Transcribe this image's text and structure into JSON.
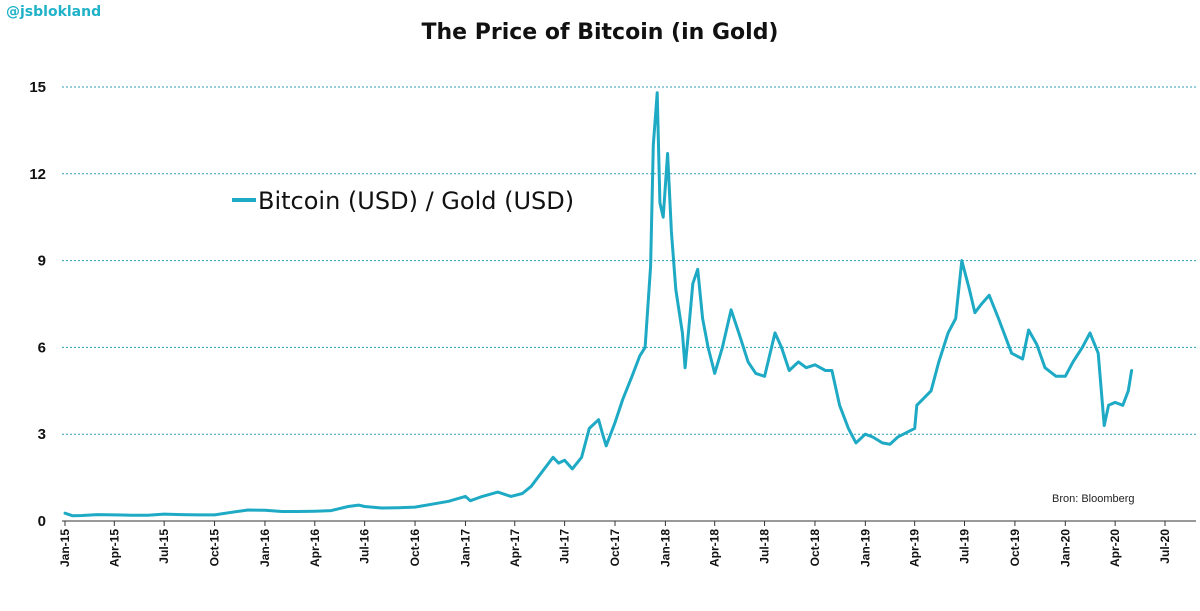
{
  "handle": "@jsblokland",
  "chart_data": {
    "type": "line",
    "title": "The Price of Bitcoin (in Gold)",
    "xlabel": "",
    "ylabel": "",
    "ylim": [
      0,
      15
    ],
    "yticks": [
      0,
      3,
      6,
      9,
      12,
      15
    ],
    "x_tick_labels": [
      "Jan-15",
      "Apr-15",
      "Jul-15",
      "Oct-15",
      "Jan-16",
      "Apr-16",
      "Jul-16",
      "Oct-16",
      "Jan-17",
      "Apr-17",
      "Jul-17",
      "Oct-17",
      "Jan-18",
      "Apr-18",
      "Jul-18",
      "Oct-18",
      "Jan-19",
      "Apr-19",
      "Jul-19",
      "Oct-19",
      "Jan-20",
      "Apr-20",
      "Jul-20"
    ],
    "x_tick_dates": [
      "2015-01",
      "2015-04",
      "2015-07",
      "2015-10",
      "2016-01",
      "2016-04",
      "2016-07",
      "2016-10",
      "2017-01",
      "2017-04",
      "2017-07",
      "2017-10",
      "2018-01",
      "2018-04",
      "2018-07",
      "2018-10",
      "2019-01",
      "2019-04",
      "2019-07",
      "2019-10",
      "2020-01",
      "2020-04",
      "2020-07"
    ],
    "grid": "horizontal dotted",
    "legend_position": "upper-left",
    "source": "Bron: Bloomberg",
    "series": [
      {
        "name": "Bitcoin (USD) / Gold (USD)",
        "color": "#1eaac4",
        "points": [
          [
            "2015-01-01",
            0.27
          ],
          [
            "2015-01-15",
            0.18
          ],
          [
            "2015-02-01",
            0.19
          ],
          [
            "2015-03-01",
            0.22
          ],
          [
            "2015-04-01",
            0.21
          ],
          [
            "2015-05-01",
            0.2
          ],
          [
            "2015-06-01",
            0.2
          ],
          [
            "2015-07-01",
            0.24
          ],
          [
            "2015-08-01",
            0.22
          ],
          [
            "2015-09-01",
            0.21
          ],
          [
            "2015-10-01",
            0.21
          ],
          [
            "2015-11-01",
            0.3
          ],
          [
            "2015-12-01",
            0.38
          ],
          [
            "2016-01-01",
            0.37
          ],
          [
            "2016-02-01",
            0.33
          ],
          [
            "2016-03-01",
            0.33
          ],
          [
            "2016-04-01",
            0.34
          ],
          [
            "2016-05-01",
            0.36
          ],
          [
            "2016-06-01",
            0.5
          ],
          [
            "2016-06-20",
            0.55
          ],
          [
            "2016-07-01",
            0.5
          ],
          [
            "2016-08-01",
            0.45
          ],
          [
            "2016-09-01",
            0.46
          ],
          [
            "2016-10-01",
            0.48
          ],
          [
            "2016-11-01",
            0.58
          ],
          [
            "2016-12-01",
            0.68
          ],
          [
            "2017-01-01",
            0.85
          ],
          [
            "2017-01-10",
            0.7
          ],
          [
            "2017-02-01",
            0.85
          ],
          [
            "2017-03-01",
            1.0
          ],
          [
            "2017-03-25",
            0.85
          ],
          [
            "2017-04-15",
            0.95
          ],
          [
            "2017-05-01",
            1.2
          ],
          [
            "2017-05-25",
            1.8
          ],
          [
            "2017-06-10",
            2.2
          ],
          [
            "2017-06-20",
            2.0
          ],
          [
            "2017-07-01",
            2.1
          ],
          [
            "2017-07-15",
            1.8
          ],
          [
            "2017-08-01",
            2.2
          ],
          [
            "2017-08-15",
            3.2
          ],
          [
            "2017-09-01",
            3.5
          ],
          [
            "2017-09-10",
            2.9
          ],
          [
            "2017-09-15",
            2.6
          ],
          [
            "2017-10-01",
            3.4
          ],
          [
            "2017-10-15",
            4.2
          ],
          [
            "2017-11-01",
            5.0
          ],
          [
            "2017-11-15",
            5.7
          ],
          [
            "2017-11-25",
            6.0
          ],
          [
            "2017-12-05",
            8.8
          ],
          [
            "2017-12-10",
            13.0
          ],
          [
            "2017-12-17",
            14.8
          ],
          [
            "2017-12-22",
            11.0
          ],
          [
            "2017-12-28",
            10.5
          ],
          [
            "2018-01-05",
            12.7
          ],
          [
            "2018-01-12",
            10.0
          ],
          [
            "2018-01-20",
            8.0
          ],
          [
            "2018-02-01",
            6.5
          ],
          [
            "2018-02-06",
            5.3
          ],
          [
            "2018-02-12",
            6.5
          ],
          [
            "2018-02-20",
            8.2
          ],
          [
            "2018-03-01",
            8.7
          ],
          [
            "2018-03-10",
            7.0
          ],
          [
            "2018-03-20",
            6.0
          ],
          [
            "2018-04-01",
            5.1
          ],
          [
            "2018-04-15",
            6.0
          ],
          [
            "2018-05-01",
            7.3
          ],
          [
            "2018-05-15",
            6.5
          ],
          [
            "2018-06-01",
            5.5
          ],
          [
            "2018-06-15",
            5.1
          ],
          [
            "2018-07-01",
            5.0
          ],
          [
            "2018-07-20",
            6.5
          ],
          [
            "2018-08-01",
            6.0
          ],
          [
            "2018-08-15",
            5.2
          ],
          [
            "2018-09-01",
            5.5
          ],
          [
            "2018-09-15",
            5.3
          ],
          [
            "2018-10-01",
            5.4
          ],
          [
            "2018-10-20",
            5.2
          ],
          [
            "2018-11-01",
            5.2
          ],
          [
            "2018-11-15",
            4.0
          ],
          [
            "2018-12-01",
            3.2
          ],
          [
            "2018-12-15",
            2.7
          ],
          [
            "2019-01-01",
            3.0
          ],
          [
            "2019-01-15",
            2.9
          ],
          [
            "2019-02-01",
            2.7
          ],
          [
            "2019-02-15",
            2.65
          ],
          [
            "2019-03-01",
            2.9
          ],
          [
            "2019-04-01",
            3.2
          ],
          [
            "2019-04-05",
            4.0
          ],
          [
            "2019-05-01",
            4.5
          ],
          [
            "2019-05-15",
            5.5
          ],
          [
            "2019-06-01",
            6.5
          ],
          [
            "2019-06-15",
            7.0
          ],
          [
            "2019-06-26",
            9.0
          ],
          [
            "2019-07-10",
            8.0
          ],
          [
            "2019-07-20",
            7.2
          ],
          [
            "2019-08-01",
            7.5
          ],
          [
            "2019-08-15",
            7.8
          ],
          [
            "2019-09-01",
            7.0
          ],
          [
            "2019-09-25",
            5.8
          ],
          [
            "2019-10-15",
            5.6
          ],
          [
            "2019-10-26",
            6.6
          ],
          [
            "2019-11-10",
            6.1
          ],
          [
            "2019-11-25",
            5.3
          ],
          [
            "2019-12-15",
            5.0
          ],
          [
            "2020-01-01",
            5.0
          ],
          [
            "2020-01-15",
            5.5
          ],
          [
            "2020-02-01",
            6.0
          ],
          [
            "2020-02-15",
            6.5
          ],
          [
            "2020-03-01",
            5.8
          ],
          [
            "2020-03-12",
            3.3
          ],
          [
            "2020-03-20",
            4.0
          ],
          [
            "2020-04-01",
            4.1
          ],
          [
            "2020-04-15",
            4.0
          ],
          [
            "2020-04-25",
            4.5
          ],
          [
            "2020-05-01",
            5.2
          ]
        ]
      }
    ]
  }
}
